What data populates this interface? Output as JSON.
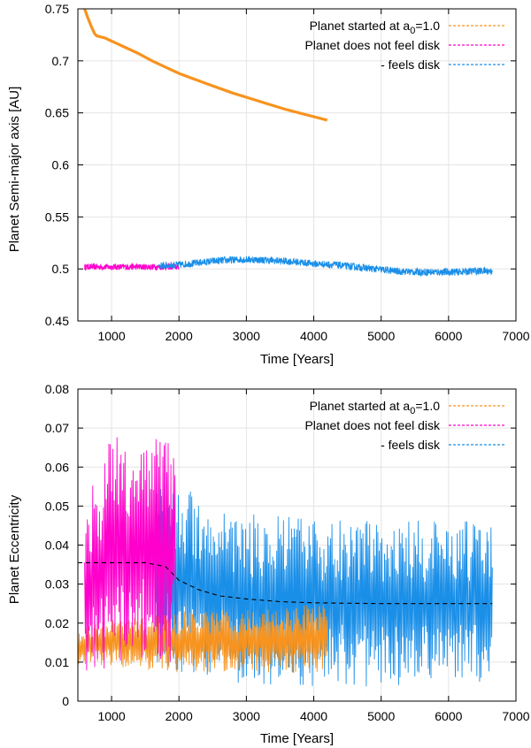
{
  "chart_data": [
    {
      "type": "line",
      "xlabel": "Time [Years]",
      "ylabel": "Planet Semi-major axis [AU]",
      "xlim": [
        500,
        7000
      ],
      "ylim": [
        0.45,
        0.75
      ],
      "xticks": [
        1000,
        2000,
        3000,
        4000,
        5000,
        6000,
        7000
      ],
      "yticks": [
        0.45,
        0.5,
        0.55,
        0.6,
        0.65,
        0.7,
        0.75
      ],
      "ytick_labels": [
        "0.45",
        "0.5",
        "0.55",
        "0.6",
        "0.65",
        "0.7",
        "0.75"
      ],
      "grid": true,
      "legend_position": "top-right",
      "legend": [
        {
          "label_pre": "Planet started at a",
          "label_sub": "0",
          "label_post": "=1.0",
          "color": "#f7931e"
        },
        {
          "label_pre": "Planet does not feel disk",
          "label_sub": "",
          "label_post": "",
          "color": "#ff00cc"
        },
        {
          "label_pre": "- feels disk",
          "label_sub": "",
          "label_post": "",
          "color": "#1a8fe8"
        }
      ],
      "series": [
        {
          "color": "#f7931e",
          "style": "line",
          "x": [
            600,
            650,
            700,
            750,
            780,
            900,
            1000,
            1200,
            1400,
            1600,
            1800,
            2000,
            2200,
            2500,
            2800,
            3000,
            3300,
            3600,
            3900,
            4200
          ],
          "y": [
            0.75,
            0.741,
            0.733,
            0.726,
            0.724,
            0.722,
            0.719,
            0.713,
            0.707,
            0.7,
            0.694,
            0.688,
            0.683,
            0.676,
            0.669,
            0.665,
            0.659,
            0.653,
            0.648,
            0.643
          ]
        },
        {
          "color": "#ff00cc",
          "style": "band",
          "x": [
            600,
            800,
            1000,
            1200,
            1400,
            1600,
            1800,
            2000
          ],
          "y": [
            0.502,
            0.502,
            0.502,
            0.502,
            0.502,
            0.502,
            0.502,
            0.502
          ],
          "halfwidth": 0.003
        },
        {
          "color": "#1a8fe8",
          "style": "band",
          "x": [
            1700,
            2000,
            2300,
            2600,
            2900,
            3100,
            3400,
            3700,
            4000,
            4300,
            4600,
            4900,
            5200,
            5500,
            5800,
            6100,
            6400,
            6650
          ],
          "y": [
            0.503,
            0.504,
            0.506,
            0.508,
            0.509,
            0.509,
            0.508,
            0.507,
            0.505,
            0.504,
            0.502,
            0.5,
            0.498,
            0.497,
            0.497,
            0.497,
            0.498,
            0.498
          ],
          "halfwidth": 0.0035
        }
      ]
    },
    {
      "type": "line",
      "xlabel": "Time [Years]",
      "ylabel": "Planet Eccentricity",
      "xlim": [
        500,
        7000
      ],
      "ylim": [
        0,
        0.08
      ],
      "xticks": [
        1000,
        2000,
        3000,
        4000,
        5000,
        6000,
        7000
      ],
      "yticks": [
        0,
        0.01,
        0.02,
        0.03,
        0.04,
        0.05,
        0.06,
        0.07,
        0.08
      ],
      "ytick_labels": [
        "0",
        "0.01",
        "0.02",
        "0.03",
        "0.04",
        "0.05",
        "0.06",
        "0.07",
        "0.08"
      ],
      "grid": true,
      "legend_position": "top-right",
      "legend": [
        {
          "label_pre": "Planet started at a",
          "label_sub": "0",
          "label_post": "=1.0",
          "color": "#f7931e"
        },
        {
          "label_pre": "Planet does not feel disk",
          "label_sub": "",
          "label_post": "",
          "color": "#ff00cc"
        },
        {
          "label_pre": "- feels disk",
          "label_sub": "",
          "label_post": "",
          "color": "#1a8fe8"
        }
      ],
      "series": [
        {
          "color": "#1a8fe8",
          "style": "oscillation",
          "x_start": 1650,
          "x_end": 6650,
          "step": 10,
          "center": [
            [
              1650,
              0.034
            ],
            [
              2000,
              0.031
            ],
            [
              3000,
              0.026
            ],
            [
              4500,
              0.025
            ],
            [
              6650,
              0.025
            ]
          ],
          "amp": [
            [
              1650,
              0.025
            ],
            [
              2000,
              0.024
            ],
            [
              3000,
              0.022
            ],
            [
              6650,
              0.021
            ]
          ]
        },
        {
          "color": "#f7931e",
          "style": "oscillation",
          "x_start": 500,
          "x_end": 4200,
          "step": 10,
          "center": [
            [
              500,
              0.014
            ],
            [
              1000,
              0.015
            ],
            [
              2000,
              0.015
            ],
            [
              3000,
              0.0155
            ],
            [
              4200,
              0.016
            ]
          ],
          "amp": [
            [
              500,
              0.005
            ],
            [
              1000,
              0.006
            ],
            [
              2000,
              0.008
            ],
            [
              3000,
              0.008
            ],
            [
              4200,
              0.009
            ]
          ]
        },
        {
          "color": "#ff00cc",
          "style": "oscillation",
          "x_start": 600,
          "x_end": 1950,
          "step": 10,
          "center": [
            [
              600,
              0.028
            ],
            [
              1000,
              0.038
            ],
            [
              1500,
              0.04
            ],
            [
              1950,
              0.04
            ]
          ],
          "amp": [
            [
              600,
              0.022
            ],
            [
              1000,
              0.03
            ],
            [
              1500,
              0.03
            ],
            [
              1950,
              0.03
            ]
          ]
        },
        {
          "color": "#000000",
          "style": "dashed",
          "x": [
            500,
            1000,
            1500,
            1800,
            2000,
            2300,
            2600,
            3000,
            3500,
            4000,
            5000,
            6000,
            6650
          ],
          "y": [
            0.0355,
            0.0355,
            0.0355,
            0.0345,
            0.031,
            0.0285,
            0.027,
            0.0262,
            0.0255,
            0.0252,
            0.025,
            0.025,
            0.025
          ]
        }
      ]
    }
  ]
}
